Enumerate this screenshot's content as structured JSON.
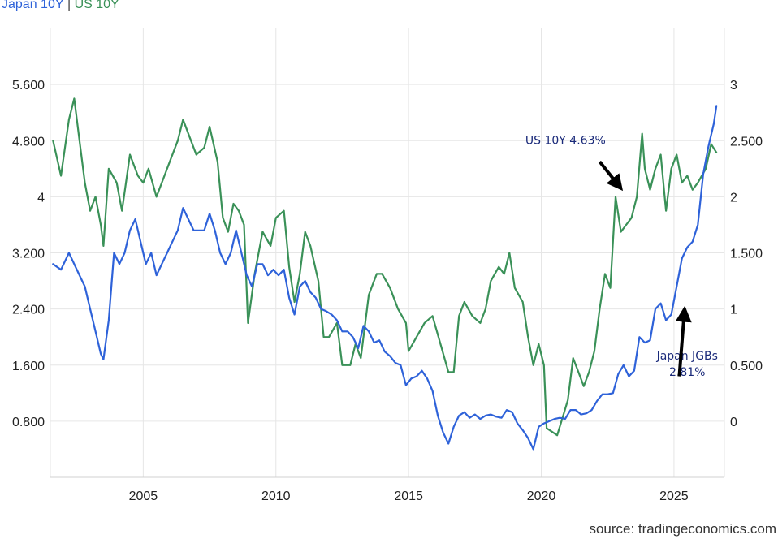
{
  "legend": {
    "series1": "Japan 10Y",
    "separator": "|",
    "series2": "US 10Y"
  },
  "source": "source: tradingeconomics.com",
  "colors": {
    "japan": "#2e62d9",
    "us": "#3a9158",
    "grid": "#e6e6e6",
    "annotation": "#1a2a7a",
    "arrow": "#000000"
  },
  "chart_data": {
    "type": "line",
    "x_unit": "year",
    "xlim": [
      2001.5,
      2026.9
    ],
    "x_ticks": [
      2005,
      2010,
      2015,
      2020,
      2025
    ],
    "x_tick_labels": [
      "2005",
      "2010",
      "2015",
      "2020",
      "2025"
    ],
    "y_left": {
      "series": "US 10Y",
      "ticks": [
        0.8,
        1.6,
        2.4,
        3.2,
        4,
        4.8,
        5.6
      ],
      "tick_labels": [
        "0.800",
        "1.600",
        "2.400",
        "3.200",
        "4",
        "4.800",
        "5.600"
      ],
      "lim": [
        -0.0,
        6.4
      ]
    },
    "y_right": {
      "series": "Japan 10Y",
      "ticks": [
        0,
        0.5,
        1,
        1.5,
        2,
        2.5,
        3
      ],
      "tick_labels": [
        "0",
        "0.500",
        "1",
        "1.500",
        "2",
        "2.500",
        "3"
      ],
      "lim": [
        -0.5,
        3.5
      ]
    },
    "grid": true,
    "series": [
      {
        "name": "US 10Y",
        "axis": "left",
        "color": "#3a9158",
        "points": [
          [
            2001.6,
            4.8
          ],
          [
            2001.9,
            4.3
          ],
          [
            2002.2,
            5.1
          ],
          [
            2002.4,
            5.4
          ],
          [
            2002.6,
            4.8
          ],
          [
            2002.8,
            4.2
          ],
          [
            2003.0,
            3.8
          ],
          [
            2003.2,
            4.0
          ],
          [
            2003.4,
            3.6
          ],
          [
            2003.5,
            3.3
          ],
          [
            2003.7,
            4.4
          ],
          [
            2004.0,
            4.2
          ],
          [
            2004.2,
            3.8
          ],
          [
            2004.5,
            4.6
          ],
          [
            2004.8,
            4.3
          ],
          [
            2005.0,
            4.2
          ],
          [
            2005.2,
            4.4
          ],
          [
            2005.5,
            4.0
          ],
          [
            2005.8,
            4.3
          ],
          [
            2006.0,
            4.5
          ],
          [
            2006.3,
            4.8
          ],
          [
            2006.5,
            5.1
          ],
          [
            2006.8,
            4.8
          ],
          [
            2007.0,
            4.6
          ],
          [
            2007.3,
            4.7
          ],
          [
            2007.5,
            5.0
          ],
          [
            2007.8,
            4.5
          ],
          [
            2008.0,
            3.7
          ],
          [
            2008.2,
            3.5
          ],
          [
            2008.4,
            3.9
          ],
          [
            2008.6,
            3.8
          ],
          [
            2008.8,
            3.6
          ],
          [
            2008.95,
            2.2
          ],
          [
            2009.2,
            2.9
          ],
          [
            2009.5,
            3.5
          ],
          [
            2009.8,
            3.3
          ],
          [
            2010.0,
            3.7
          ],
          [
            2010.3,
            3.8
          ],
          [
            2010.5,
            3.0
          ],
          [
            2010.7,
            2.5
          ],
          [
            2010.9,
            2.9
          ],
          [
            2011.1,
            3.5
          ],
          [
            2011.3,
            3.3
          ],
          [
            2011.6,
            2.8
          ],
          [
            2011.8,
            2.0
          ],
          [
            2012.0,
            2.0
          ],
          [
            2012.3,
            2.2
          ],
          [
            2012.5,
            1.6
          ],
          [
            2012.8,
            1.6
          ],
          [
            2013.0,
            1.9
          ],
          [
            2013.2,
            1.7
          ],
          [
            2013.5,
            2.6
          ],
          [
            2013.8,
            2.9
          ],
          [
            2014.0,
            2.9
          ],
          [
            2014.3,
            2.7
          ],
          [
            2014.6,
            2.4
          ],
          [
            2014.9,
            2.2
          ],
          [
            2015.0,
            1.8
          ],
          [
            2015.3,
            2.0
          ],
          [
            2015.6,
            2.2
          ],
          [
            2015.9,
            2.3
          ],
          [
            2016.2,
            1.9
          ],
          [
            2016.5,
            1.5
          ],
          [
            2016.7,
            1.5
          ],
          [
            2016.9,
            2.3
          ],
          [
            2017.1,
            2.5
          ],
          [
            2017.4,
            2.3
          ],
          [
            2017.7,
            2.2
          ],
          [
            2017.9,
            2.4
          ],
          [
            2018.1,
            2.8
          ],
          [
            2018.4,
            3.0
          ],
          [
            2018.6,
            2.9
          ],
          [
            2018.8,
            3.2
          ],
          [
            2019.0,
            2.7
          ],
          [
            2019.3,
            2.5
          ],
          [
            2019.5,
            2.0
          ],
          [
            2019.7,
            1.6
          ],
          [
            2019.9,
            1.9
          ],
          [
            2020.1,
            1.6
          ],
          [
            2020.2,
            0.7
          ],
          [
            2020.4,
            0.65
          ],
          [
            2020.6,
            0.6
          ],
          [
            2020.8,
            0.85
          ],
          [
            2021.0,
            1.1
          ],
          [
            2021.2,
            1.7
          ],
          [
            2021.4,
            1.5
          ],
          [
            2021.6,
            1.3
          ],
          [
            2021.8,
            1.5
          ],
          [
            2022.0,
            1.8
          ],
          [
            2022.2,
            2.4
          ],
          [
            2022.4,
            2.9
          ],
          [
            2022.6,
            2.7
          ],
          [
            2022.8,
            4.0
          ],
          [
            2023.0,
            3.5
          ],
          [
            2023.2,
            3.6
          ],
          [
            2023.4,
            3.7
          ],
          [
            2023.6,
            4.0
          ],
          [
            2023.8,
            4.9
          ],
          [
            2023.9,
            4.4
          ],
          [
            2024.1,
            4.1
          ],
          [
            2024.3,
            4.4
          ],
          [
            2024.5,
            4.6
          ],
          [
            2024.7,
            3.8
          ],
          [
            2024.9,
            4.4
          ],
          [
            2025.1,
            4.6
          ],
          [
            2025.3,
            4.2
          ],
          [
            2025.5,
            4.3
          ],
          [
            2025.7,
            4.1
          ],
          [
            2025.9,
            4.2
          ],
          [
            2026.2,
            4.4
          ],
          [
            2026.4,
            4.75
          ],
          [
            2026.6,
            4.63
          ]
        ]
      },
      {
        "name": "Japan 10Y",
        "axis": "right",
        "color": "#2e62d9",
        "points": [
          [
            2001.6,
            1.4
          ],
          [
            2001.9,
            1.35
          ],
          [
            2002.2,
            1.5
          ],
          [
            2002.4,
            1.4
          ],
          [
            2002.6,
            1.3
          ],
          [
            2002.8,
            1.2
          ],
          [
            2003.0,
            1.0
          ],
          [
            2003.2,
            0.8
          ],
          [
            2003.4,
            0.6
          ],
          [
            2003.5,
            0.55
          ],
          [
            2003.7,
            0.9
          ],
          [
            2003.9,
            1.5
          ],
          [
            2004.1,
            1.4
          ],
          [
            2004.3,
            1.5
          ],
          [
            2004.5,
            1.7
          ],
          [
            2004.7,
            1.8
          ],
          [
            2004.9,
            1.6
          ],
          [
            2005.1,
            1.4
          ],
          [
            2005.3,
            1.5
          ],
          [
            2005.5,
            1.3
          ],
          [
            2005.7,
            1.4
          ],
          [
            2005.9,
            1.5
          ],
          [
            2006.1,
            1.6
          ],
          [
            2006.3,
            1.7
          ],
          [
            2006.5,
            1.9
          ],
          [
            2006.7,
            1.8
          ],
          [
            2006.9,
            1.7
          ],
          [
            2007.1,
            1.7
          ],
          [
            2007.3,
            1.7
          ],
          [
            2007.5,
            1.85
          ],
          [
            2007.7,
            1.7
          ],
          [
            2007.9,
            1.5
          ],
          [
            2008.1,
            1.4
          ],
          [
            2008.3,
            1.5
          ],
          [
            2008.5,
            1.7
          ],
          [
            2008.7,
            1.5
          ],
          [
            2008.9,
            1.3
          ],
          [
            2009.1,
            1.2
          ],
          [
            2009.3,
            1.4
          ],
          [
            2009.5,
            1.4
          ],
          [
            2009.7,
            1.3
          ],
          [
            2009.9,
            1.35
          ],
          [
            2010.1,
            1.3
          ],
          [
            2010.3,
            1.35
          ],
          [
            2010.5,
            1.1
          ],
          [
            2010.7,
            0.95
          ],
          [
            2010.9,
            1.2
          ],
          [
            2011.1,
            1.25
          ],
          [
            2011.3,
            1.15
          ],
          [
            2011.5,
            1.1
          ],
          [
            2011.7,
            1.0
          ],
          [
            2011.9,
            0.98
          ],
          [
            2012.1,
            0.95
          ],
          [
            2012.3,
            0.9
          ],
          [
            2012.5,
            0.8
          ],
          [
            2012.7,
            0.8
          ],
          [
            2012.9,
            0.75
          ],
          [
            2013.1,
            0.65
          ],
          [
            2013.3,
            0.85
          ],
          [
            2013.5,
            0.8
          ],
          [
            2013.7,
            0.7
          ],
          [
            2013.9,
            0.72
          ],
          [
            2014.1,
            0.62
          ],
          [
            2014.3,
            0.58
          ],
          [
            2014.5,
            0.52
          ],
          [
            2014.7,
            0.5
          ],
          [
            2014.9,
            0.32
          ],
          [
            2015.1,
            0.38
          ],
          [
            2015.3,
            0.4
          ],
          [
            2015.5,
            0.45
          ],
          [
            2015.7,
            0.38
          ],
          [
            2015.9,
            0.27
          ],
          [
            2016.1,
            0.05
          ],
          [
            2016.3,
            -0.1
          ],
          [
            2016.5,
            -0.2
          ],
          [
            2016.7,
            -0.05
          ],
          [
            2016.9,
            0.05
          ],
          [
            2017.1,
            0.08
          ],
          [
            2017.3,
            0.03
          ],
          [
            2017.5,
            0.06
          ],
          [
            2017.7,
            0.02
          ],
          [
            2017.9,
            0.05
          ],
          [
            2018.1,
            0.06
          ],
          [
            2018.3,
            0.04
          ],
          [
            2018.5,
            0.03
          ],
          [
            2018.7,
            0.1
          ],
          [
            2018.9,
            0.08
          ],
          [
            2019.1,
            -0.02
          ],
          [
            2019.3,
            -0.08
          ],
          [
            2019.5,
            -0.15
          ],
          [
            2019.7,
            -0.25
          ],
          [
            2019.9,
            -0.05
          ],
          [
            2020.1,
            -0.02
          ],
          [
            2020.3,
            0.0
          ],
          [
            2020.5,
            0.02
          ],
          [
            2020.7,
            0.03
          ],
          [
            2020.9,
            0.02
          ],
          [
            2021.1,
            0.1
          ],
          [
            2021.3,
            0.1
          ],
          [
            2021.5,
            0.06
          ],
          [
            2021.7,
            0.07
          ],
          [
            2021.9,
            0.1
          ],
          [
            2022.1,
            0.18
          ],
          [
            2022.3,
            0.24
          ],
          [
            2022.5,
            0.24
          ],
          [
            2022.7,
            0.25
          ],
          [
            2022.9,
            0.42
          ],
          [
            2023.1,
            0.5
          ],
          [
            2023.3,
            0.4
          ],
          [
            2023.5,
            0.45
          ],
          [
            2023.7,
            0.75
          ],
          [
            2023.9,
            0.7
          ],
          [
            2024.1,
            0.72
          ],
          [
            2024.3,
            1.0
          ],
          [
            2024.5,
            1.05
          ],
          [
            2024.7,
            0.9
          ],
          [
            2024.9,
            0.95
          ],
          [
            2025.1,
            1.2
          ],
          [
            2025.3,
            1.45
          ],
          [
            2025.5,
            1.55
          ],
          [
            2025.7,
            1.6
          ],
          [
            2025.9,
            1.75
          ],
          [
            2026.1,
            2.2
          ],
          [
            2026.3,
            2.45
          ],
          [
            2026.5,
            2.65
          ],
          [
            2026.6,
            2.81
          ]
        ]
      }
    ],
    "annotations": [
      {
        "text": "US 10Y 4.63%",
        "label_at": [
          2019.4,
          4.75
        ],
        "arrow_tail": [
          2022.2,
          4.5
        ],
        "arrow_head": [
          2023.0,
          4.12
        ]
      },
      {
        "text": "Japan JGBs",
        "text2": "2.81%",
        "label_at": [
          2025.5,
          0.52
        ],
        "arrow_tail": [
          2025.2,
          0.4
        ],
        "arrow_head": [
          2025.4,
          1.0
        ]
      }
    ]
  }
}
